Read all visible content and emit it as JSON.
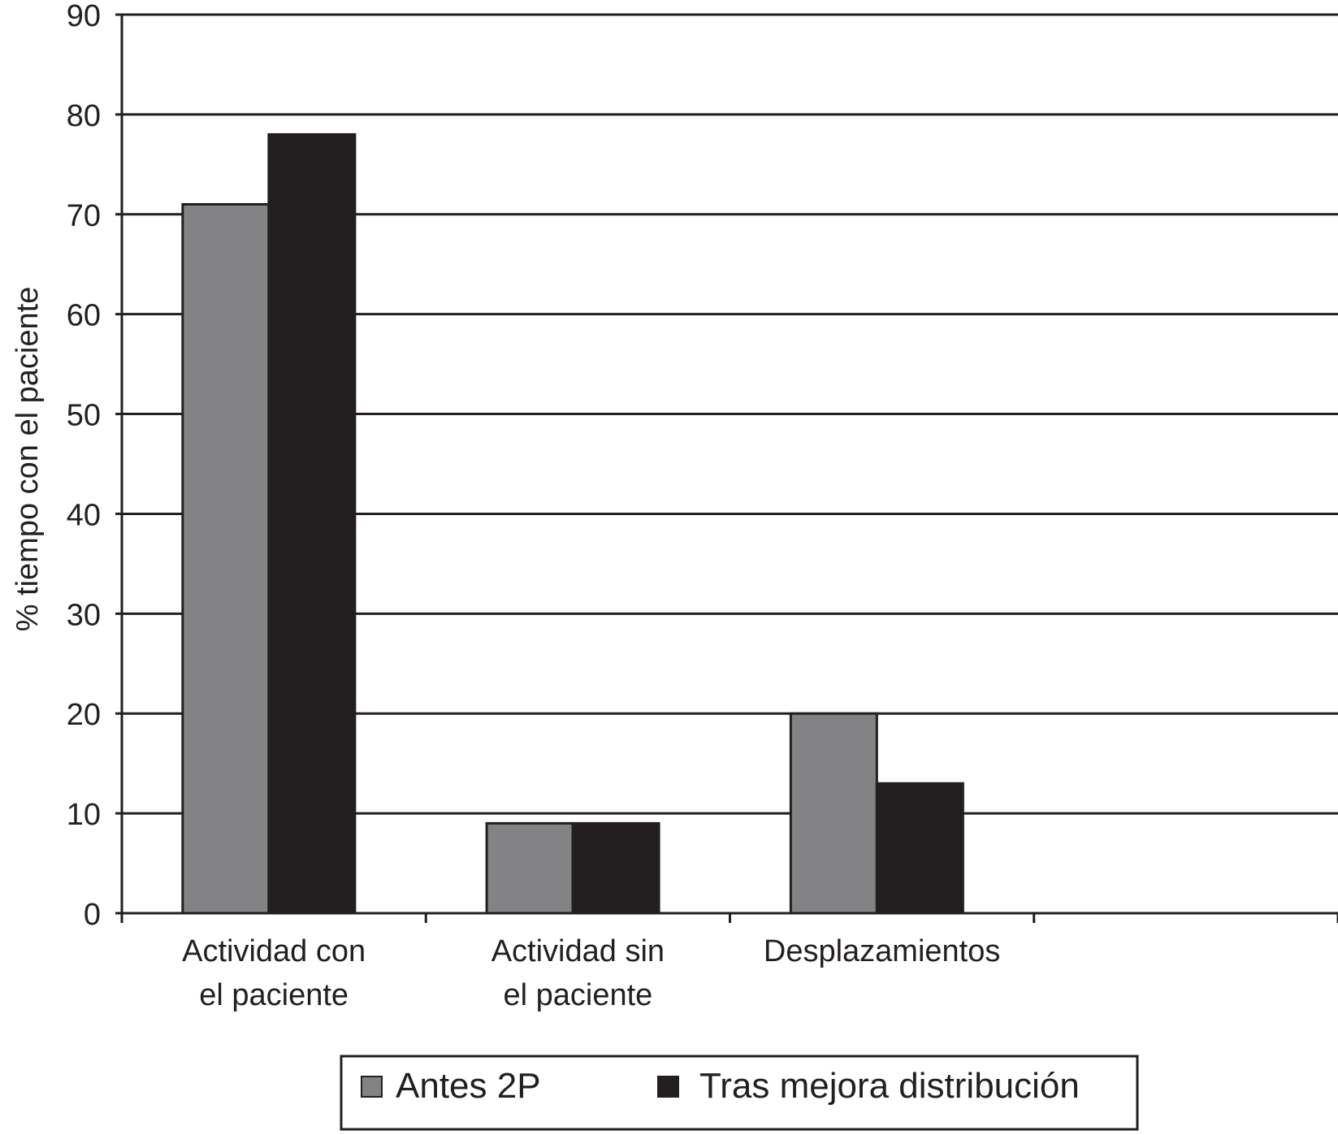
{
  "chart_data": {
    "type": "bar",
    "title": "",
    "ylabel": "% tiempo con el paciente",
    "xlabel": "",
    "ylim": [
      0,
      90
    ],
    "yticks": [
      0,
      10,
      20,
      30,
      40,
      50,
      60,
      70,
      80,
      90
    ],
    "grid": true,
    "legend_position": "bottom",
    "categories": [
      [
        "Actividad con",
        "el paciente"
      ],
      [
        "Actividad sin",
        "el paciente"
      ],
      [
        "Desplazamientos"
      ],
      []
    ],
    "series": [
      {
        "name": "Antes 2P",
        "color": "#838386",
        "values": [
          71,
          9,
          20,
          null
        ]
      },
      {
        "name": "Tras mejora distribución",
        "color": "#231f20",
        "values": [
          78,
          9,
          13,
          null
        ]
      }
    ]
  }
}
